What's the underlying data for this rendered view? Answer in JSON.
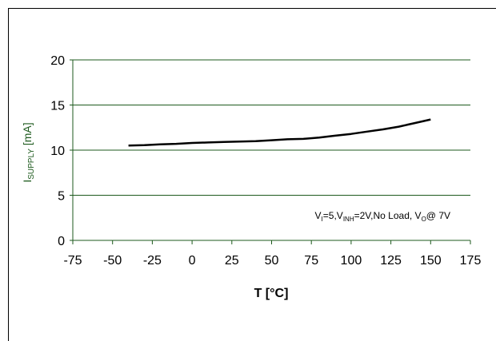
{
  "chart_data": {
    "type": "line",
    "xlabel": "T [°C]",
    "ylabel": {
      "main": "I",
      "sub": "SUPPLY",
      "unit": " [mA]"
    },
    "xlim": [
      -75,
      175
    ],
    "ylim": [
      0,
      20
    ],
    "xticks": [
      "-75",
      "-50",
      "-25",
      "0",
      "25",
      "50",
      "75",
      "100",
      "125",
      "150",
      "175"
    ],
    "yticks": [
      "0",
      "5",
      "10",
      "15",
      "20"
    ],
    "grid": "horizontal",
    "line_color": "#000000",
    "grid_color": "#1d5a1d",
    "annotation": {
      "p1": "V",
      "s1": "I",
      "p2": "=5,V",
      "s2": "INH",
      "p3": "=2V,No Load, V",
      "s3": "O",
      "p4": "@ 7V"
    },
    "series": [
      {
        "x": [
          -40,
          -30,
          -20,
          -10,
          0,
          10,
          20,
          30,
          40,
          50,
          60,
          70,
          80,
          90,
          100,
          110,
          120,
          130,
          140,
          150
        ],
        "y": [
          10.5,
          10.55,
          10.65,
          10.7,
          10.8,
          10.85,
          10.9,
          10.95,
          11.0,
          11.1,
          11.2,
          11.25,
          11.4,
          11.6,
          11.8,
          12.05,
          12.3,
          12.6,
          13.0,
          13.4
        ]
      }
    ]
  }
}
